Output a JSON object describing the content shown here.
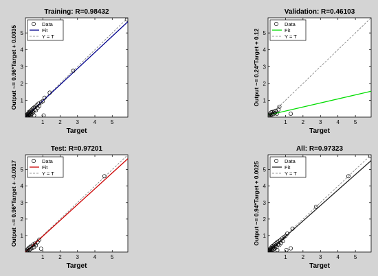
{
  "figure": {
    "background": "#d4d4d4"
  },
  "chart_data": [
    {
      "type": "scatter",
      "title": "Training: R=0.98432",
      "xlabel": "Target",
      "ylabel": "Output ~= 0.96*Target + 0.0035",
      "xlim": [
        0,
        5.9
      ],
      "ylim": [
        0,
        5.9
      ],
      "xticks": [
        "1",
        "2",
        "3",
        "4",
        "5"
      ],
      "yticks": [
        "1",
        "2",
        "3",
        "4",
        "5"
      ],
      "legend": {
        "position": "top-left",
        "entries": [
          "Data",
          "Fit",
          "Y = T"
        ]
      },
      "fit": {
        "slope": 0.96,
        "intercept": 0.0035,
        "color": "#00008b"
      },
      "data_points": [
        [
          0.03,
          0.03
        ],
        [
          0.05,
          0.08
        ],
        [
          0.07,
          0.02
        ],
        [
          0.08,
          0.12
        ],
        [
          0.1,
          0.06
        ],
        [
          0.12,
          0.18
        ],
        [
          0.14,
          0.1
        ],
        [
          0.15,
          0.04
        ],
        [
          0.17,
          0.22
        ],
        [
          0.19,
          0.14
        ],
        [
          0.2,
          0.3
        ],
        [
          0.22,
          0.08
        ],
        [
          0.24,
          0.26
        ],
        [
          0.26,
          0.18
        ],
        [
          0.28,
          0.36
        ],
        [
          0.3,
          0.12
        ],
        [
          0.32,
          0.28
        ],
        [
          0.35,
          0.42
        ],
        [
          0.38,
          0.2
        ],
        [
          0.4,
          0.35
        ],
        [
          0.42,
          0.5
        ],
        [
          0.45,
          0.3
        ],
        [
          0.48,
          0.55
        ],
        [
          0.5,
          0.1
        ],
        [
          0.53,
          0.45
        ],
        [
          0.56,
          0.62
        ],
        [
          0.6,
          0.4
        ],
        [
          0.65,
          0.7
        ],
        [
          0.7,
          0.55
        ],
        [
          0.75,
          0.8
        ],
        [
          0.8,
          0.66
        ],
        [
          0.9,
          0.88
        ],
        [
          1.0,
          0.95
        ],
        [
          1.05,
          0.1
        ],
        [
          1.1,
          1.15
        ],
        [
          1.4,
          1.45
        ],
        [
          2.75,
          2.75
        ],
        [
          5.85,
          5.8
        ]
      ]
    },
    {
      "type": "scatter",
      "title": "Validation: R=0.46103",
      "xlabel": "Target",
      "ylabel": "Output ~= 0.24*Target + 0.12",
      "xlim": [
        0,
        5.9
      ],
      "ylim": [
        0,
        5.9
      ],
      "xticks": [
        "1",
        "2",
        "3",
        "4",
        "5"
      ],
      "yticks": [
        "1",
        "2",
        "3",
        "4",
        "5"
      ],
      "legend": {
        "position": "top-left",
        "entries": [
          "Data",
          "Fit",
          "Y = T"
        ]
      },
      "fit": {
        "slope": 0.24,
        "intercept": 0.12,
        "color": "#00dd00"
      },
      "data_points": [
        [
          0.03,
          0.05
        ],
        [
          0.06,
          0.12
        ],
        [
          0.09,
          0.03
        ],
        [
          0.12,
          0.2
        ],
        [
          0.15,
          0.1
        ],
        [
          0.18,
          0.28
        ],
        [
          0.21,
          0.15
        ],
        [
          0.25,
          0.3
        ],
        [
          0.3,
          0.18
        ],
        [
          0.35,
          0.34
        ],
        [
          0.4,
          0.25
        ],
        [
          0.45,
          0.38
        ],
        [
          0.5,
          0.2
        ],
        [
          0.6,
          0.45
        ],
        [
          0.65,
          0.62
        ],
        [
          1.3,
          0.2
        ]
      ]
    },
    {
      "type": "scatter",
      "title": "Test: R=0.97201",
      "xlabel": "Target",
      "ylabel": "Output ~= 0.96*Target + -0.0017",
      "xlim": [
        0,
        5.9
      ],
      "ylim": [
        0,
        5.9
      ],
      "xticks": [
        "1",
        "2",
        "3",
        "4",
        "5"
      ],
      "yticks": [
        "1",
        "2",
        "3",
        "4",
        "5"
      ],
      "legend": {
        "position": "top-left",
        "entries": [
          "Data",
          "Fit",
          "Y = T"
        ]
      },
      "fit": {
        "slope": 0.96,
        "intercept": -0.0017,
        "color": "#cc0000"
      },
      "data_points": [
        [
          0.03,
          0.04
        ],
        [
          0.06,
          0.1
        ],
        [
          0.09,
          0.03
        ],
        [
          0.12,
          0.16
        ],
        [
          0.15,
          0.08
        ],
        [
          0.18,
          0.24
        ],
        [
          0.22,
          0.12
        ],
        [
          0.26,
          0.3
        ],
        [
          0.3,
          0.18
        ],
        [
          0.35,
          0.38
        ],
        [
          0.4,
          0.25
        ],
        [
          0.45,
          0.45
        ],
        [
          0.5,
          0.3
        ],
        [
          0.55,
          0.52
        ],
        [
          0.6,
          0.4
        ],
        [
          0.7,
          0.6
        ],
        [
          0.8,
          0.75
        ],
        [
          0.9,
          0.2
        ],
        [
          4.55,
          4.6
        ]
      ]
    },
    {
      "type": "scatter",
      "title": "All: R=0.97323",
      "xlabel": "Target",
      "ylabel": "Output ~= 0.94*Target + 0.0025",
      "xlim": [
        0,
        5.9
      ],
      "ylim": [
        0,
        5.9
      ],
      "xticks": [
        "1",
        "2",
        "3",
        "4",
        "5"
      ],
      "yticks": [
        "1",
        "2",
        "3",
        "4",
        "5"
      ],
      "legend": {
        "position": "top-left",
        "entries": [
          "Data",
          "Fit",
          "Y = T"
        ]
      },
      "fit": {
        "slope": 0.94,
        "intercept": 0.0025,
        "color": "#222222"
      },
      "data_points": [
        [
          0.03,
          0.03
        ],
        [
          0.05,
          0.09
        ],
        [
          0.07,
          0.02
        ],
        [
          0.08,
          0.14
        ],
        [
          0.1,
          0.06
        ],
        [
          0.12,
          0.2
        ],
        [
          0.14,
          0.11
        ],
        [
          0.16,
          0.04
        ],
        [
          0.18,
          0.26
        ],
        [
          0.2,
          0.15
        ],
        [
          0.22,
          0.32
        ],
        [
          0.24,
          0.09
        ],
        [
          0.26,
          0.24
        ],
        [
          0.28,
          0.38
        ],
        [
          0.3,
          0.15
        ],
        [
          0.33,
          0.3
        ],
        [
          0.36,
          0.45
        ],
        [
          0.39,
          0.22
        ],
        [
          0.42,
          0.38
        ],
        [
          0.45,
          0.52
        ],
        [
          0.48,
          0.3
        ],
        [
          0.5,
          0.58
        ],
        [
          0.53,
          0.12
        ],
        [
          0.56,
          0.46
        ],
        [
          0.6,
          0.65
        ],
        [
          0.65,
          0.42
        ],
        [
          0.7,
          0.72
        ],
        [
          0.75,
          0.55
        ],
        [
          0.8,
          0.82
        ],
        [
          0.85,
          0.66
        ],
        [
          0.9,
          0.9
        ],
        [
          1.0,
          0.98
        ],
        [
          1.05,
          0.12
        ],
        [
          1.1,
          1.12
        ],
        [
          1.3,
          0.22
        ],
        [
          1.4,
          1.42
        ],
        [
          2.75,
          2.75
        ],
        [
          4.6,
          4.6
        ],
        [
          5.85,
          5.82
        ]
      ]
    }
  ]
}
